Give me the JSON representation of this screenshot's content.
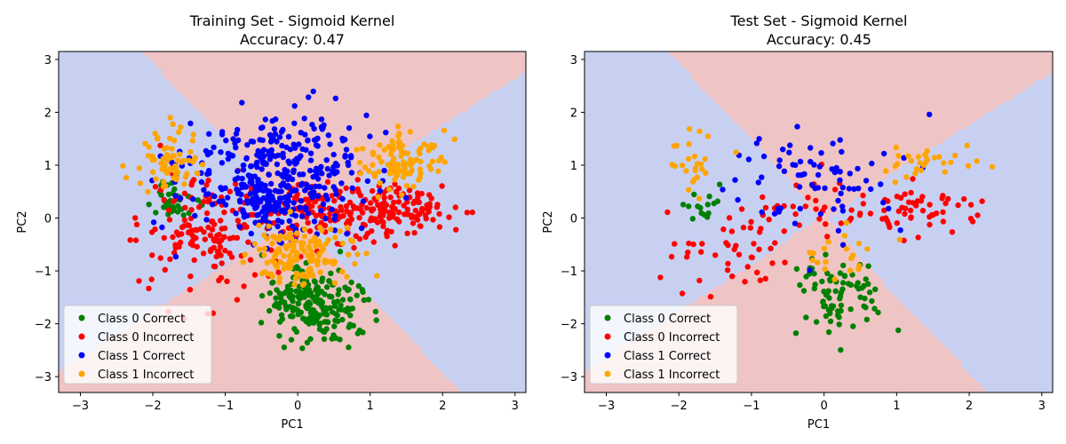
{
  "figure": {
    "colors": {
      "region_class0": "#efc4c4",
      "region_class1": "#c8d0f2",
      "class0_correct": "#008000",
      "class0_incorrect": "#ff0000",
      "class1_correct": "#0000ff",
      "class1_incorrect": "#ffa500"
    }
  },
  "chart_data": [
    {
      "type": "scatter",
      "title": "Training Set - Sigmoid Kernel",
      "subtitle": "Accuracy: 0.47",
      "xlabel": "PC1",
      "ylabel": "PC2",
      "xlim": [
        -3.3,
        3.15
      ],
      "ylim": [
        -3.3,
        3.15
      ],
      "xticks": [
        -3,
        -2,
        -1,
        0,
        1,
        2,
        3
      ],
      "yticks": [
        -3,
        -2,
        -1,
        0,
        1,
        2,
        3
      ],
      "legend_position": "lower-left",
      "legend": [
        "Class 0 Correct",
        "Class 0 Incorrect",
        "Class 1 Correct",
        "Class 1 Incorrect"
      ],
      "background": "decision regions of a sigmoid-kernel classifier",
      "series": [
        {
          "name": "Class 0 Correct",
          "clusters": [
            {
              "center": [
                0.2,
                -1.6
              ],
              "spread": [
                0.33,
                0.33
              ],
              "n": 220
            },
            {
              "center": [
                -1.7,
                0.3
              ],
              "spread": [
                0.15,
                0.18
              ],
              "n": 40
            }
          ]
        },
        {
          "name": "Class 0 Incorrect",
          "clusters": [
            {
              "center": [
                -1.3,
                -0.3
              ],
              "spread": [
                0.45,
                0.55
              ],
              "n": 150
            },
            {
              "center": [
                1.3,
                0.1
              ],
              "spread": [
                0.42,
                0.28
              ],
              "n": 150
            },
            {
              "center": [
                0.1,
                0.2
              ],
              "spread": [
                0.5,
                0.3
              ],
              "n": 100
            }
          ]
        },
        {
          "name": "Class 1 Correct",
          "clusters": [
            {
              "center": [
                -0.3,
                0.9
              ],
              "spread": [
                0.65,
                0.55
              ],
              "n": 330
            },
            {
              "center": [
                -0.3,
                0.1
              ],
              "spread": [
                0.3,
                0.25
              ],
              "n": 60
            }
          ]
        },
        {
          "name": "Class 1 Incorrect",
          "clusters": [
            {
              "center": [
                -1.8,
                1.0
              ],
              "spread": [
                0.2,
                0.35
              ],
              "n": 70
            },
            {
              "center": [
                1.4,
                1.1
              ],
              "spread": [
                0.3,
                0.25
              ],
              "n": 100
            },
            {
              "center": [
                0.1,
                -0.7
              ],
              "spread": [
                0.35,
                0.3
              ],
              "n": 140
            }
          ]
        }
      ]
    },
    {
      "type": "scatter",
      "title": "Test Set - Sigmoid Kernel",
      "subtitle": "Accuracy: 0.45",
      "xlabel": "PC1",
      "ylabel": "PC2",
      "xlim": [
        -3.3,
        3.15
      ],
      "ylim": [
        -3.3,
        3.15
      ],
      "xticks": [
        -3,
        -2,
        -1,
        0,
        1,
        2,
        3
      ],
      "yticks": [
        -3,
        -2,
        -1,
        0,
        1,
        2,
        3
      ],
      "legend_position": "lower-left",
      "legend": [
        "Class 0 Correct",
        "Class 0 Incorrect",
        "Class 1 Correct",
        "Class 1 Incorrect"
      ],
      "background": "decision regions of a sigmoid-kernel classifier",
      "series": [
        {
          "name": "Class 0 Correct",
          "clusters": [
            {
              "center": [
                0.2,
                -1.5
              ],
              "spread": [
                0.3,
                0.4
              ],
              "n": 80
            },
            {
              "center": [
                -1.7,
                0.2
              ],
              "spread": [
                0.15,
                0.15
              ],
              "n": 15
            }
          ]
        },
        {
          "name": "Class 0 Incorrect",
          "clusters": [
            {
              "center": [
                -1.2,
                -0.4
              ],
              "spread": [
                0.4,
                0.45
              ],
              "n": 50
            },
            {
              "center": [
                1.3,
                0.1
              ],
              "spread": [
                0.45,
                0.22
              ],
              "n": 50
            },
            {
              "center": [
                0.1,
                0.2
              ],
              "spread": [
                0.45,
                0.3
              ],
              "n": 30
            }
          ]
        },
        {
          "name": "Class 1 Correct",
          "clusters": [
            {
              "center": [
                -0.2,
                0.8
              ],
              "spread": [
                0.6,
                0.55
              ],
              "n": 75
            }
          ]
        },
        {
          "name": "Class 1 Incorrect",
          "clusters": [
            {
              "center": [
                -1.8,
                1.0
              ],
              "spread": [
                0.2,
                0.3
              ],
              "n": 25
            },
            {
              "center": [
                1.5,
                1.1
              ],
              "spread": [
                0.3,
                0.2
              ],
              "n": 30
            },
            {
              "center": [
                0.2,
                -0.7
              ],
              "spread": [
                0.3,
                0.25
              ],
              "n": 20
            }
          ]
        }
      ]
    }
  ]
}
